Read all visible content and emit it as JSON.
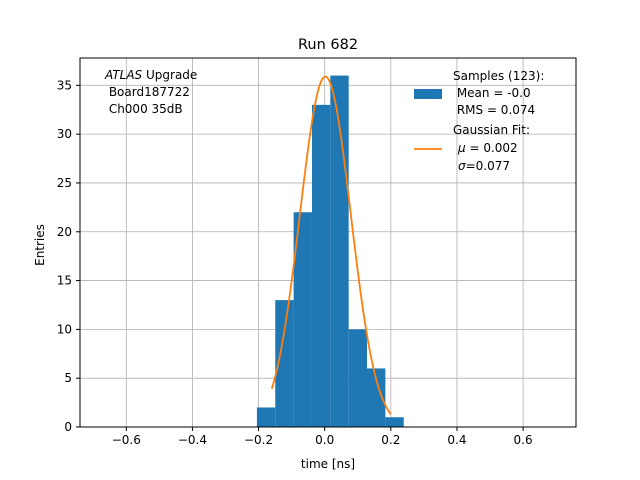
{
  "chart_data": {
    "type": "bar",
    "title": "Run 682",
    "xlabel": "time [ns]",
    "ylabel": "Entries",
    "xlim": [
      -0.74,
      0.76
    ],
    "ylim": [
      0,
      37.8
    ],
    "grid": true,
    "x_ticks": [
      -0.6,
      -0.4,
      -0.2,
      0.0,
      0.2,
      0.4,
      0.6
    ],
    "x_tick_labels": [
      "−0.6",
      "−0.4",
      "−0.2",
      "0.0",
      "0.2",
      "0.4",
      "0.6"
    ],
    "y_ticks": [
      0,
      5,
      10,
      15,
      20,
      25,
      30,
      35
    ],
    "y_tick_labels": [
      "0",
      "5",
      "10",
      "15",
      "20",
      "25",
      "30",
      "35"
    ],
    "bin_width": 0.0555,
    "bins": [
      {
        "x0": -0.205,
        "count": 2
      },
      {
        "x0": -0.1495,
        "count": 13
      },
      {
        "x0": -0.094,
        "count": 22
      },
      {
        "x0": -0.0385,
        "count": 33
      },
      {
        "x0": 0.017,
        "count": 36
      },
      {
        "x0": 0.0725,
        "count": 10
      },
      {
        "x0": 0.128,
        "count": 6
      },
      {
        "x0": 0.1835,
        "count": 1
      }
    ],
    "fit": {
      "type": "gaussian",
      "amplitude": 35.9,
      "mu": 0.002,
      "sigma": 0.077,
      "x_range": [
        -0.16,
        0.2
      ]
    },
    "annotation": {
      "experiment": "ATLAS",
      "line1_rest": " Upgrade",
      "line2": " Board187722",
      "line3": " Ch000 35dB"
    },
    "legend": {
      "placement": "top-right",
      "samples_l1": "Samples (123):",
      "samples_l2": " Mean = -0.0",
      "samples_l3": " RMS = 0.074",
      "fit_l1": "Gaussian Fit:",
      "fit_mu_val": " = 0.002",
      "fit_sigma_val": "=0.077"
    },
    "colors": {
      "histogram": "#1f77b4",
      "fit": "#ff7f0e",
      "grid": "#b0b0b0"
    }
  }
}
